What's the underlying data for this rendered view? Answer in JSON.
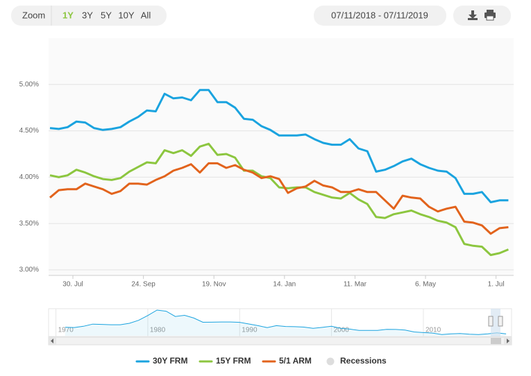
{
  "ui": {
    "zoom_label": "Zoom",
    "ranges": [
      "1Y",
      "3Y",
      "5Y",
      "10Y",
      "All"
    ],
    "selected_range": 0,
    "date_range": "07/11/2018 - 07/11/2019"
  },
  "chart_data": [
    {
      "type": "line",
      "categories": [
        null,
        null,
        null,
        "30. Jul",
        null,
        null,
        null,
        null,
        null,
        null,
        null,
        "24. Sep",
        null,
        null,
        null,
        null,
        null,
        null,
        null,
        "19. Nov",
        null,
        null,
        null,
        null,
        null,
        null,
        null,
        "14. Jan",
        null,
        null,
        null,
        null,
        null,
        null,
        null,
        "11. Mar",
        null,
        null,
        null,
        null,
        null,
        null,
        null,
        "6. May",
        null,
        null,
        null,
        null,
        null,
        null,
        null,
        "1. Jul",
        null
      ],
      "series": [
        {
          "name": "30Y FRM",
          "color": "#1aa3df",
          "values": [
            4.53,
            4.52,
            4.54,
            4.6,
            4.59,
            4.53,
            4.51,
            4.52,
            4.54,
            4.6,
            4.65,
            4.72,
            4.71,
            4.9,
            4.85,
            4.86,
            4.83,
            4.94,
            4.94,
            4.81,
            4.81,
            4.75,
            4.63,
            4.62,
            4.55,
            4.51,
            4.45,
            4.45,
            4.45,
            4.46,
            4.41,
            4.37,
            4.35,
            4.35,
            4.41,
            4.31,
            4.28,
            4.06,
            4.08,
            4.12,
            4.17,
            4.2,
            4.14,
            4.1,
            4.07,
            4.06,
            3.99,
            3.82,
            3.82,
            3.84,
            3.73,
            3.75,
            3.75
          ]
        },
        {
          "name": "15Y FRM",
          "color": "#8cc63f",
          "values": [
            4.02,
            4.0,
            4.02,
            4.08,
            4.05,
            4.01,
            3.98,
            3.97,
            3.99,
            4.06,
            4.11,
            4.16,
            4.15,
            4.29,
            4.26,
            4.29,
            4.23,
            4.33,
            4.36,
            4.24,
            4.25,
            4.21,
            4.07,
            4.07,
            4.01,
            3.99,
            3.89,
            3.88,
            3.89,
            3.89,
            3.84,
            3.81,
            3.78,
            3.77,
            3.83,
            3.76,
            3.71,
            3.57,
            3.56,
            3.6,
            3.62,
            3.64,
            3.6,
            3.57,
            3.53,
            3.51,
            3.46,
            3.28,
            3.26,
            3.25,
            3.16,
            3.18,
            3.22
          ]
        },
        {
          "name": "5/1 ARM",
          "color": "#e2631c",
          "values": [
            3.78,
            3.86,
            3.87,
            3.87,
            3.93,
            3.9,
            3.87,
            3.82,
            3.85,
            3.93,
            3.93,
            3.92,
            3.97,
            4.01,
            4.07,
            4.1,
            4.14,
            4.05,
            4.15,
            4.15,
            4.1,
            4.13,
            4.08,
            4.05,
            3.99,
            4.01,
            3.98,
            3.83,
            3.88,
            3.9,
            3.96,
            3.91,
            3.89,
            3.84,
            3.84,
            3.87,
            3.84,
            3.84,
            3.75,
            3.66,
            3.8,
            3.78,
            3.77,
            3.68,
            3.63,
            3.66,
            3.68,
            3.52,
            3.51,
            3.48,
            3.39,
            3.45,
            3.46
          ]
        }
      ],
      "recessions": {
        "name": "Recessions",
        "color": "#dddddd"
      },
      "ylim": [
        2.94,
        5.5
      ],
      "yticks": [
        {
          "value": 3,
          "label": "3.00%"
        },
        {
          "value": 3.5,
          "label": "3.50%"
        },
        {
          "value": 4,
          "label": "4.00%"
        },
        {
          "value": 4.5,
          "label": "4.50%"
        },
        {
          "value": 5,
          "label": "5.00%"
        }
      ],
      "grid": true
    },
    {
      "type": "area",
      "color": "#1aa3df",
      "x": [
        1971,
        1972,
        1973,
        1974,
        1975,
        1976,
        1977,
        1978,
        1979,
        1980,
        1981,
        1982,
        1983,
        1984,
        1985,
        1986,
        1987,
        1988,
        1989,
        1990,
        1991,
        1992,
        1993,
        1994,
        1995,
        1996,
        1997,
        1998,
        1999,
        2000,
        2001,
        2002,
        2003,
        2004,
        2005,
        2006,
        2007,
        2008,
        2009,
        2010,
        2011,
        2012,
        2013,
        2014,
        2015,
        2016,
        2017,
        2018,
        2019
      ],
      "values": [
        7.54,
        7.38,
        8.04,
        9.19,
        9.05,
        8.87,
        8.85,
        9.64,
        11.2,
        13.74,
        16.63,
        16.04,
        13.24,
        13.88,
        12.43,
        10.19,
        10.21,
        10.34,
        10.32,
        10.13,
        9.25,
        8.39,
        7.31,
        8.38,
        7.93,
        7.81,
        7.6,
        6.94,
        7.44,
        8.05,
        6.97,
        6.54,
        5.83,
        5.84,
        5.87,
        6.41,
        6.34,
        6.03,
        5.04,
        4.69,
        4.45,
        3.66,
        3.98,
        4.17,
        3.85,
        3.65,
        3.99,
        4.54,
        4.0
      ],
      "xlim": [
        1969.2,
        2019.6
      ],
      "xticks": [
        1970,
        1980,
        1990,
        2000,
        2010
      ],
      "ylim": [
        3,
        17
      ]
    }
  ]
}
